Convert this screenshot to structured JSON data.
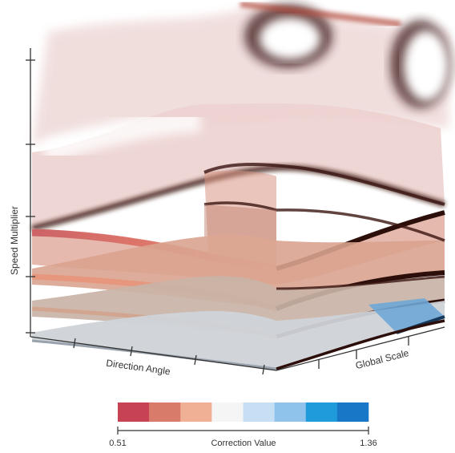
{
  "chart_data": {
    "type": "surface-3d-isosurfaces",
    "title": "",
    "axes": {
      "x_label": "Direction Angle",
      "y_label": "Global Scale",
      "z_label": "Speed Multiplier",
      "x_tick_count": 5,
      "y_tick_count": 3,
      "z_tick_count": 5
    },
    "surfaces": [
      {
        "level": 1,
        "color": "#cfd3d8"
      },
      {
        "level": 2,
        "color": "#c9b3a6"
      },
      {
        "level": 3,
        "color": "#d9a38f"
      },
      {
        "level": 4,
        "color": "#e2b1a4"
      },
      {
        "level": 5,
        "color": "#ecd2cf"
      }
    ],
    "colorbar": {
      "label": "Correction Value",
      "min_label": "0.51",
      "max_label": "1.36",
      "colors": [
        "#c74253",
        "#d97b6a",
        "#efb096",
        "#f5f5f5",
        "#c7dff4",
        "#8fc3ec",
        "#1f9bdc",
        "#1977c8"
      ]
    }
  }
}
